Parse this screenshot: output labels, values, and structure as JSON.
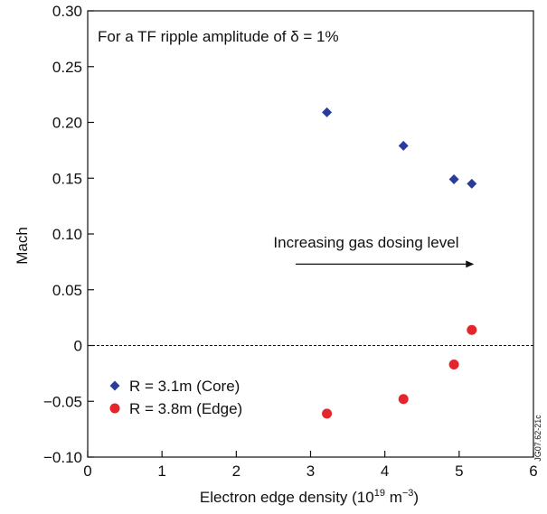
{
  "chart_data": {
    "type": "scatter",
    "title": "For a TF ripple amplitude of δ = 1%",
    "xlabel_main": "Electron edge density (10",
    "xlabel_sup1": "19",
    "xlabel_mid": " m",
    "xlabel_sup2": "−3",
    "xlabel_end": ")",
    "ylabel": "Mach",
    "xlim": [
      0,
      6
    ],
    "ylim": [
      -0.1,
      0.3
    ],
    "x_ticks": [
      0,
      1,
      2,
      3,
      4,
      5,
      6
    ],
    "x_tick_labels": [
      "0",
      "1",
      "2",
      "3",
      "4",
      "5",
      "6"
    ],
    "y_ticks": [
      -0.1,
      -0.05,
      0,
      0.05,
      0.1,
      0.15,
      0.2,
      0.25,
      0.3
    ],
    "y_tick_labels": [
      "−0.10",
      "−0.05",
      "0",
      "0.05",
      "0.10",
      "0.15",
      "0.20",
      "0.25",
      "0.30"
    ],
    "reference_line_y": 0,
    "annotation": {
      "text": "Increasing gas dosing level",
      "arrow_from": [
        2.8,
        0.073
      ],
      "arrow_to": [
        5.2,
        0.073
      ],
      "text_position": [
        2.5,
        0.088
      ]
    },
    "series": [
      {
        "name": "R = 3.1m (Core)",
        "marker": "diamond",
        "color": "#2a3c9a",
        "x": [
          3.22,
          4.25,
          4.93,
          5.17
        ],
        "y": [
          0.209,
          0.179,
          0.149,
          0.145
        ]
      },
      {
        "name": "R = 3.8m (Edge)",
        "marker": "circle",
        "color": "#e4252c",
        "x": [
          3.22,
          4.25,
          4.93,
          5.17
        ],
        "y": [
          -0.061,
          -0.048,
          -0.017,
          0.014
        ]
      }
    ],
    "legend_position": "bottom-left",
    "grid": false,
    "figure_id": "JG07.62-21c"
  }
}
